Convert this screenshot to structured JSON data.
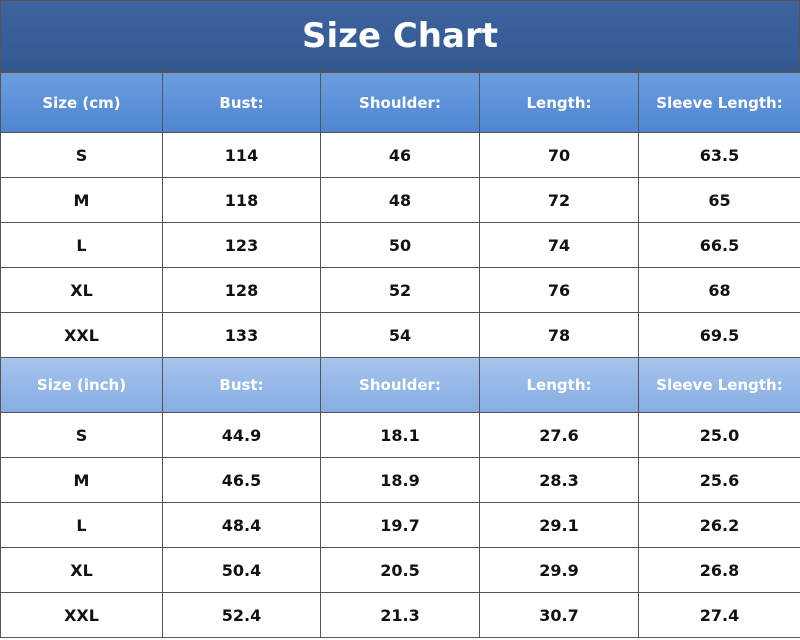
{
  "title": "Size Chart",
  "tables": [
    {
      "header": [
        "Size (cm)",
        "Bust:",
        "Shoulder:",
        "Length:",
        "Sleeve Length:"
      ],
      "rows": [
        [
          "S",
          "114",
          "46",
          "70",
          "63.5"
        ],
        [
          "M",
          "118",
          "48",
          "72",
          "65"
        ],
        [
          "L",
          "123",
          "50",
          "74",
          "66.5"
        ],
        [
          "XL",
          "128",
          "52",
          "76",
          "68"
        ],
        [
          "XXL",
          "133",
          "54",
          "78",
          "69.5"
        ]
      ]
    },
    {
      "header": [
        "Size (inch)",
        "Bust:",
        "Shoulder:",
        "Length:",
        "Sleeve Length:"
      ],
      "rows": [
        [
          "S",
          "44.9",
          "18.1",
          "27.6",
          "25.0"
        ],
        [
          "M",
          "46.5",
          "18.9",
          "28.3",
          "25.6"
        ],
        [
          "L",
          "48.4",
          "19.7",
          "29.1",
          "26.2"
        ],
        [
          "XL",
          "50.4",
          "20.5",
          "29.9",
          "26.8"
        ],
        [
          "XXL",
          "52.4",
          "21.3",
          "30.7",
          "27.4"
        ]
      ]
    }
  ]
}
